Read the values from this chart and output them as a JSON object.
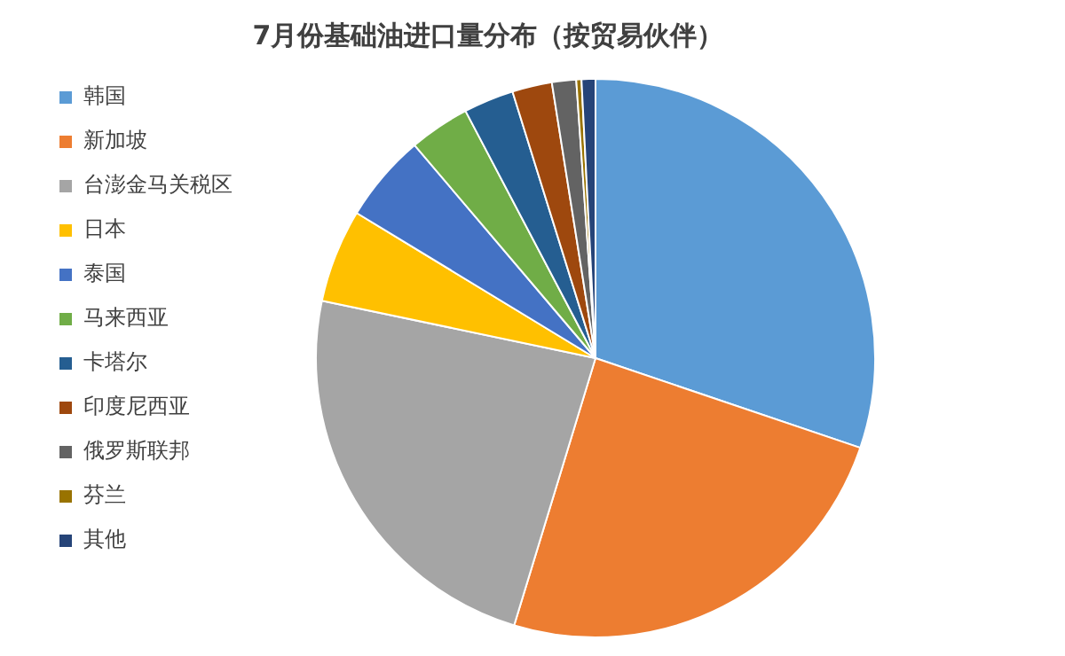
{
  "chart_data": {
    "type": "pie",
    "title": "7月份基础油进口量分布（按贸易伙伴）",
    "categories": [
      "韩国",
      "新加坡",
      "台澎金马关税区",
      "日本",
      "泰国",
      "马来西亚",
      "卡塔尔",
      "印度尼西亚",
      "俄罗斯联邦",
      "芬兰",
      "其他"
    ],
    "values": [
      30.2,
      24.5,
      23.6,
      5.4,
      5.1,
      3.5,
      2.9,
      2.3,
      1.4,
      0.3,
      0.8
    ],
    "colors": [
      "#5b9bd5",
      "#ed7d31",
      "#a5a5a5",
      "#ffc000",
      "#4472c4",
      "#70ad47",
      "#255e91",
      "#9e480e",
      "#636363",
      "#997300",
      "#264478"
    ],
    "legend": "left"
  }
}
